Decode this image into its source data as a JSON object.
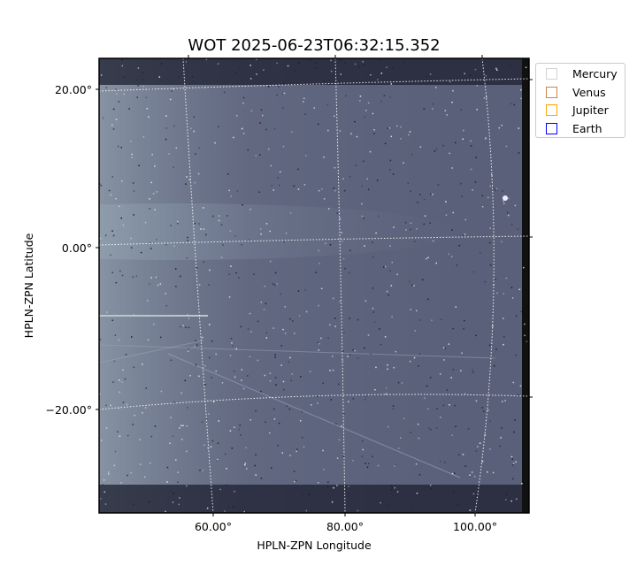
{
  "chart_data": {
    "type": "image",
    "title": "WOT 2025-06-23T06:32:15.352",
    "xlabel": "HPLN-ZPN Longitude",
    "ylabel": "HPLN-ZPN Latitude",
    "x_ticks": [
      "60.00°",
      "80.00°",
      "100.00°"
    ],
    "y_ticks": [
      "20.00°",
      "0.00°",
      "−20.00°"
    ],
    "grid": true,
    "colormap": "bone",
    "legend_position": "outside-top-right",
    "legend": [
      {
        "name": "Mercury",
        "color": "#d3d3d3"
      },
      {
        "name": "Venus",
        "color": "#c9844f"
      },
      {
        "name": "Jupiter",
        "color": "#ffa500"
      },
      {
        "name": "Earth",
        "color": "#0000ff"
      }
    ]
  }
}
